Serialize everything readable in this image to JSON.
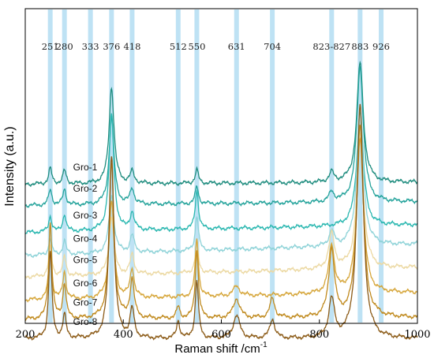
{
  "chart_data": {
    "type": "line",
    "xlabel": "Raman shift /cm",
    "xlabel_superscript": "-1",
    "ylabel": "Intensity (a.u.)",
    "xlim": [
      200,
      1000
    ],
    "x_ticks": [
      200,
      400,
      600,
      800,
      1000
    ],
    "y_ticks_shown": false,
    "grid": false,
    "legend": "none",
    "highlight_color": "#a8d8f0",
    "highlight_bands": [
      {
        "position": 251,
        "label": "251"
      },
      {
        "position": 280,
        "label": "280"
      },
      {
        "position": 333,
        "label": "333"
      },
      {
        "position": 376,
        "label": "376"
      },
      {
        "position": 418,
        "label": "418"
      },
      {
        "position": 512,
        "label": "512"
      },
      {
        "position": 550,
        "label": "550"
      },
      {
        "position": 631,
        "label": "631"
      },
      {
        "position": 704,
        "label": "704"
      },
      {
        "position": 825,
        "label": "823-827"
      },
      {
        "position": 883,
        "label": "883"
      },
      {
        "position": 926,
        "label": "926"
      }
    ],
    "series": [
      {
        "name": "Gro-1",
        "color": "#1e8c7e",
        "baseline": 0.63,
        "slope": 0.01,
        "peaks": [
          [
            251,
            0.08,
            4
          ],
          [
            280,
            0.07,
            4
          ],
          [
            376,
            0.5,
            6
          ],
          [
            418,
            0.06,
            5
          ],
          [
            550,
            0.07,
            4
          ],
          [
            825,
            0.05,
            6
          ],
          [
            883,
            0.62,
            8
          ]
        ]
      },
      {
        "name": "Gro-2",
        "color": "#24a39b",
        "baseline": 0.52,
        "slope": 0.02,
        "peaks": [
          [
            251,
            0.08,
            4
          ],
          [
            280,
            0.08,
            4
          ],
          [
            376,
            0.45,
            6
          ],
          [
            418,
            0.08,
            5
          ],
          [
            550,
            0.09,
            4
          ],
          [
            825,
            0.05,
            6
          ],
          [
            883,
            0.7,
            8
          ]
        ]
      },
      {
        "name": "Gro-3",
        "color": "#2ab7b0",
        "baseline": 0.38,
        "slope": 0.04,
        "peaks": [
          [
            251,
            0.08,
            4
          ],
          [
            280,
            0.09,
            4
          ],
          [
            376,
            0.6,
            6
          ],
          [
            418,
            0.09,
            5
          ],
          [
            550,
            0.2,
            4
          ],
          [
            883,
            0.6,
            8
          ]
        ]
      },
      {
        "name": "Gro-4",
        "color": "#8fd3d8",
        "baseline": 0.26,
        "slope": 0.06,
        "peaks": [
          [
            251,
            0.08,
            4
          ],
          [
            280,
            0.07,
            4
          ],
          [
            376,
            0.3,
            6
          ],
          [
            418,
            0.09,
            5
          ],
          [
            550,
            0.18,
            4
          ],
          [
            825,
            0.08,
            6
          ],
          [
            883,
            0.7,
            8
          ]
        ]
      },
      {
        "name": "Gro-5",
        "color": "#ecd9a3",
        "baseline": 0.15,
        "slope": 0.05,
        "peaks": [
          [
            251,
            0.15,
            4
          ],
          [
            280,
            0.1,
            4
          ],
          [
            376,
            0.3,
            6
          ],
          [
            418,
            0.1,
            5
          ],
          [
            550,
            0.15,
            4
          ],
          [
            825,
            0.18,
            7
          ],
          [
            883,
            0.7,
            8
          ]
        ]
      },
      {
        "name": "Gro-6",
        "color": "#d6a63a",
        "baseline": 0.03,
        "slope": 0.04,
        "peaks": [
          [
            251,
            0.25,
            4
          ],
          [
            280,
            0.14,
            4
          ],
          [
            376,
            0.5,
            6
          ],
          [
            418,
            0.15,
            5
          ],
          [
            550,
            0.3,
            4
          ],
          [
            631,
            0.05,
            8
          ],
          [
            825,
            0.25,
            7
          ],
          [
            883,
            0.8,
            8
          ]
        ]
      },
      {
        "name": "Gro-7",
        "color": "#c08a1e",
        "baseline": -0.07,
        "slope": 0.01,
        "peaks": [
          [
            251,
            0.5,
            4
          ],
          [
            280,
            0.18,
            4
          ],
          [
            376,
            0.8,
            6
          ],
          [
            418,
            0.2,
            5
          ],
          [
            512,
            0.06,
            4
          ],
          [
            550,
            0.35,
            4
          ],
          [
            631,
            0.1,
            8
          ],
          [
            704,
            0.1,
            6
          ],
          [
            825,
            0.35,
            7
          ],
          [
            883,
            1.0,
            8
          ]
        ]
      },
      {
        "name": "Gro-8",
        "color": "#8b5a16",
        "baseline": -0.17,
        "slope": 0.0,
        "peaks": [
          [
            251,
            0.45,
            4
          ],
          [
            280,
            0.12,
            4
          ],
          [
            376,
            0.95,
            6
          ],
          [
            418,
            0.15,
            5
          ],
          [
            512,
            0.09,
            4
          ],
          [
            550,
            0.3,
            4
          ],
          [
            631,
            0.12,
            8
          ],
          [
            704,
            0.1,
            6
          ],
          [
            825,
            0.2,
            7
          ],
          [
            883,
            1.2,
            8
          ]
        ]
      }
    ]
  }
}
